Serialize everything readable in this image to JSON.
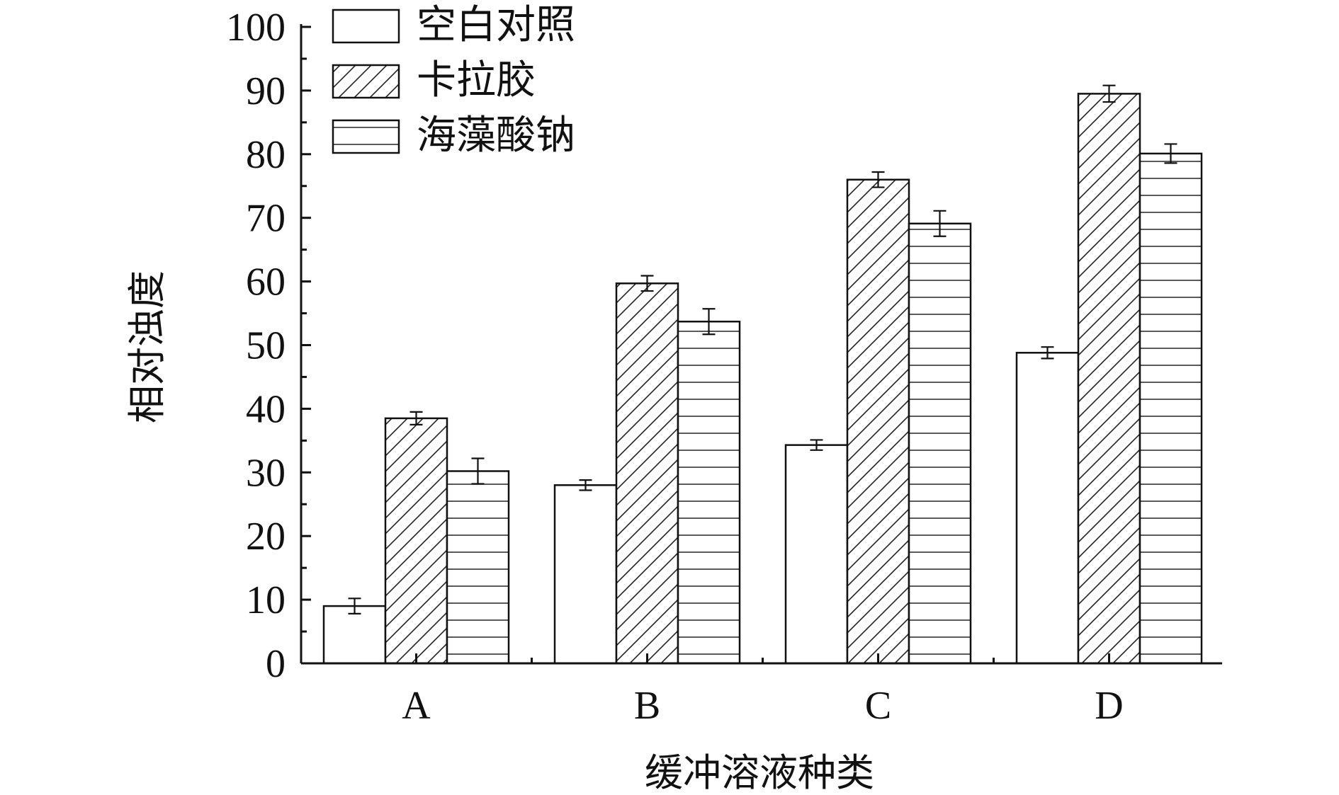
{
  "chart_data": {
    "type": "bar",
    "title": "",
    "xlabel": "缓冲溶液种类",
    "ylabel": "相对浊度",
    "categories": [
      "A",
      "B",
      "C",
      "D"
    ],
    "ylim": [
      0,
      100
    ],
    "yticks": [
      0,
      10,
      20,
      30,
      40,
      50,
      60,
      70,
      80,
      90,
      100
    ],
    "legend_position": "top-left",
    "grid": false,
    "series": [
      {
        "name": "空白对照",
        "pattern": "plain",
        "values": [
          9,
          28,
          34.3,
          48.8
        ],
        "errors": [
          1.2,
          0.8,
          0.8,
          0.9
        ]
      },
      {
        "name": "卡拉胶",
        "pattern": "diagonal",
        "values": [
          38.5,
          59.7,
          76,
          89.5
        ],
        "errors": [
          1.0,
          1.2,
          1.2,
          1.3
        ]
      },
      {
        "name": "海藻酸钠",
        "pattern": "horizontal",
        "values": [
          30.2,
          53.7,
          69.1,
          80.1
        ],
        "errors": [
          2.0,
          2.0,
          2.0,
          1.5
        ]
      }
    ]
  }
}
